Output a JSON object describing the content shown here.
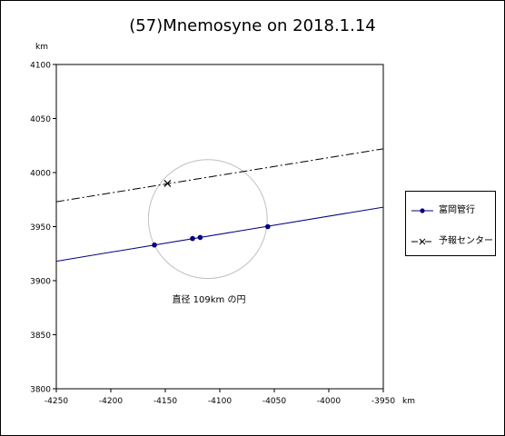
{
  "title": "(57)Mnemosyne on 2018.1.14",
  "chart_data": {
    "type": "scatter",
    "title": "(57)Mnemosyne on 2018.1.14",
    "xlabel": "km",
    "ylabel": "km",
    "xlim": [
      -4250,
      -3950
    ],
    "ylim": [
      3800,
      4100
    ],
    "xticks": [
      -4250,
      -4200,
      -4150,
      -4100,
      -4050,
      -4000,
      -3950
    ],
    "yticks": [
      3800,
      3850,
      3900,
      3950,
      4000,
      4050,
      4100
    ],
    "grid": false,
    "legend_position": "right",
    "series": [
      {
        "name": "富岡管行",
        "style": "line-with-markers",
        "color": "#000080",
        "line": {
          "x": [
            -4250,
            -3950
          ],
          "y": [
            3918,
            3968
          ]
        },
        "points": [
          {
            "x": -4160,
            "y": 3933
          },
          {
            "x": -4125,
            "y": 3939
          },
          {
            "x": -4118,
            "y": 3940
          },
          {
            "x": -4056,
            "y": 3950
          }
        ]
      },
      {
        "name": "予報センター",
        "style": "dash-dot-line",
        "color": "#000000",
        "line": {
          "x": [
            -4250,
            -3950
          ],
          "y": [
            3973,
            4022
          ]
        },
        "points": [
          {
            "x": -4148,
            "y": 3990
          }
        ]
      }
    ],
    "annotations": [
      {
        "type": "circle",
        "center": {
          "x": -4111,
          "y": 3957
        },
        "radius_km": 54.5,
        "color": "#c0c0c0",
        "label": "直径 109km の円",
        "label_at": {
          "x": -4110,
          "y": 3880
        }
      }
    ]
  }
}
